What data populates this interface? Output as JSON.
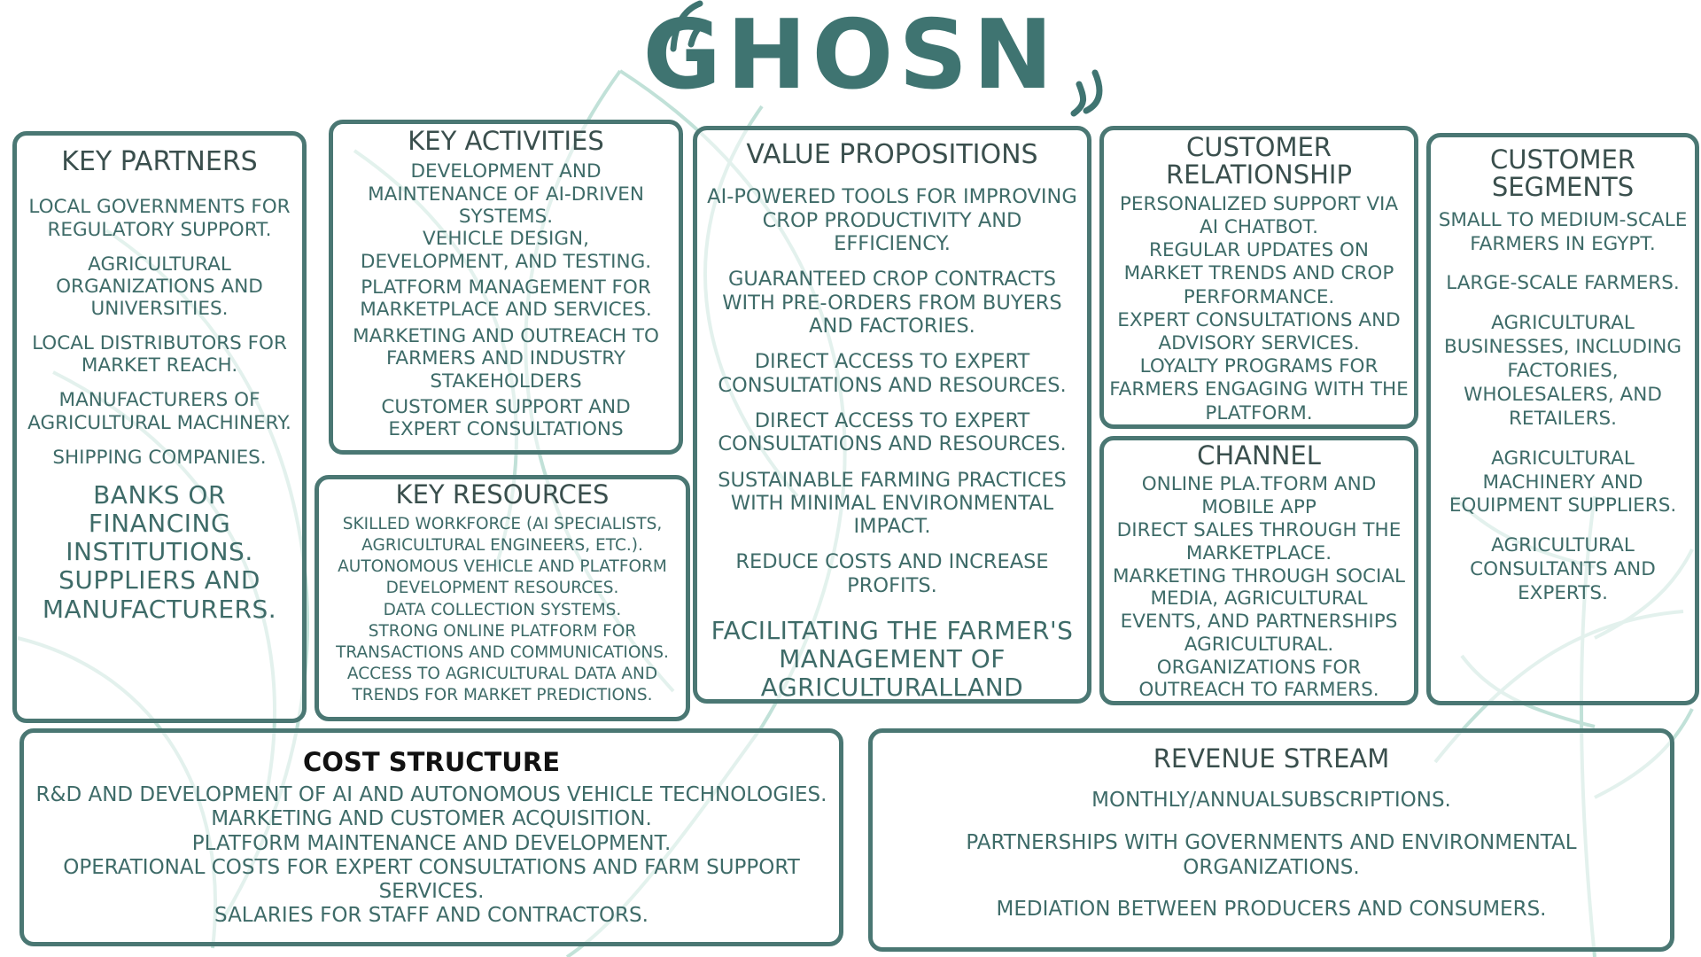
{
  "title": "GHOSN",
  "colors": {
    "accent": "#3f7471",
    "box_border": "#4a7773",
    "text": "#3e6b68",
    "leaf": "#a8d5c8"
  },
  "key_partners": {
    "heading": "KEY PARTNERS",
    "items": [
      "LOCAL GOVERNMENTS FOR\nREGULATORY SUPPORT.",
      "AGRICULTURAL\nORGANIZATIONS AND\nUNIVERSITIES.",
      "LOCAL DISTRIBUTORS FOR\nMARKET REACH.",
      "MANUFACTURERS OF\nAGRICULTURAL MACHINERY.",
      "SHIPPING COMPANIES.",
      "BANKS OR\nFINANCING\nINSTITUTIONS.",
      "SUPPLIERS AND\nMANUFACTURERS."
    ]
  },
  "key_activities": {
    "heading": "KEY ACTIVITIES",
    "items": [
      "DEVELOPMENT AND\nMAINTENANCE OF AI-DRIVEN\nSYSTEMS.\nVEHICLE DESIGN,\nDEVELOPMENT, AND TESTING.",
      "PLATFORM MANAGEMENT FOR\nMARKETPLACE AND SERVICES.",
      "MARKETING AND OUTREACH TO\nFARMERS AND INDUSTRY\nSTAKEHOLDERS",
      "CUSTOMER SUPPORT AND\nEXPERT CONSULTATIONS"
    ]
  },
  "key_resources": {
    "heading": "KEY RESOURCES",
    "items": [
      "SKILLED WORKFORCE (AI SPECIALISTS,\nAGRICULTURAL ENGINEERS, ETC.).\nAUTONOMOUS VEHICLE AND PLATFORM\nDEVELOPMENT RESOURCES.\nDATA COLLECTION SYSTEMS.\nSTRONG ONLINE PLATFORM FOR\nTRANSACTIONS AND COMMUNICATIONS.\nACCESS TO AGRICULTURAL DATA AND\nTRENDS FOR MARKET PREDICTIONS."
    ]
  },
  "value_propositions": {
    "heading": "VALUE PROPOSITIONS",
    "items": [
      "AI-POWERED TOOLS FOR IMPROVING\nCROP PRODUCTIVITY AND EFFICIENCY.",
      "GUARANTEED CROP CONTRACTS\nWITH PRE-ORDERS FROM BUYERS\nAND FACTORIES.",
      "DIRECT ACCESS TO EXPERT\nCONSULTATIONS AND RESOURCES.",
      "DIRECT ACCESS TO EXPERT\nCONSULTATIONS AND RESOURCES.",
      "SUSTAINABLE FARMING PRACTICES\nWITH MINIMAL ENVIRONMENTAL\nIMPACT.",
      "REDUCE COSTS AND INCREASE\nPROFITS.",
      "FACILITATING THE FARMER'S\nMANAGEMENT OF\nAGRICULTURALLAND\nTHROUGH AI."
    ]
  },
  "customer_relationship": {
    "heading": "CUSTOMER\nRELATIONSHIP",
    "items": [
      "PERSONALIZED SUPPORT VIA\nAI CHATBOT.\nREGULAR UPDATES ON\nMARKET TRENDS AND CROP\nPERFORMANCE.\nEXPERT CONSULTATIONS AND\nADVISORY SERVICES.\nLOYALTY PROGRAMS FOR\nFARMERS ENGAGING WITH THE\nPLATFORM."
    ]
  },
  "channel": {
    "heading": "CHANNEL",
    "items": [
      "ONLINE PLA.TFORM AND\nMOBILE APP\nDIRECT SALES THROUGH THE\nMARKETPLACE.\nMARKETING THROUGH SOCIAL\nMEDIA, AGRICULTURAL\nEVENTS, AND PARTNERSHIPS\nAGRICULTURAL.\nORGANIZATIONS FOR\nOUTREACH TO FARMERS."
    ]
  },
  "customer_segments": {
    "heading": "CUSTOMER\nSEGMENTS",
    "items": [
      "SMALL TO MEDIUM-SCALE\nFARMERS IN EGYPT.",
      "LARGE-SCALE FARMERS.",
      "AGRICULTURAL\nBUSINESSES, INCLUDING\nFACTORIES,\nWHOLESALERS, AND\nRETAILERS.",
      "AGRICULTURAL\nMACHINERY AND\nEQUIPMENT SUPPLIERS.",
      "AGRICULTURAL\nCONSULTANTS AND\nEXPERTS."
    ]
  },
  "cost_structure": {
    "heading": "COST STRUCTURE",
    "items": [
      "R&D AND DEVELOPMENT OF AI AND AUTONOMOUS VEHICLE TECHNOLOGIES.\nMARKETING AND CUSTOMER ACQUISITION.\nPLATFORM MAINTENANCE AND DEVELOPMENT.\nOPERATIONAL COSTS FOR EXPERT CONSULTATIONS AND FARM SUPPORT\nSERVICES.\nSALARIES FOR STAFF AND CONTRACTORS."
    ]
  },
  "revenue_stream": {
    "heading": "REVENUE STREAM",
    "items": [
      "MONTHLY/ANNUALSUBSCRIPTIONS.",
      "PARTNERSHIPS WITH GOVERNMENTS AND ENVIRONMENTAL\nORGANIZATIONS.",
      "MEDIATION BETWEEN PRODUCERS AND CONSUMERS."
    ]
  }
}
